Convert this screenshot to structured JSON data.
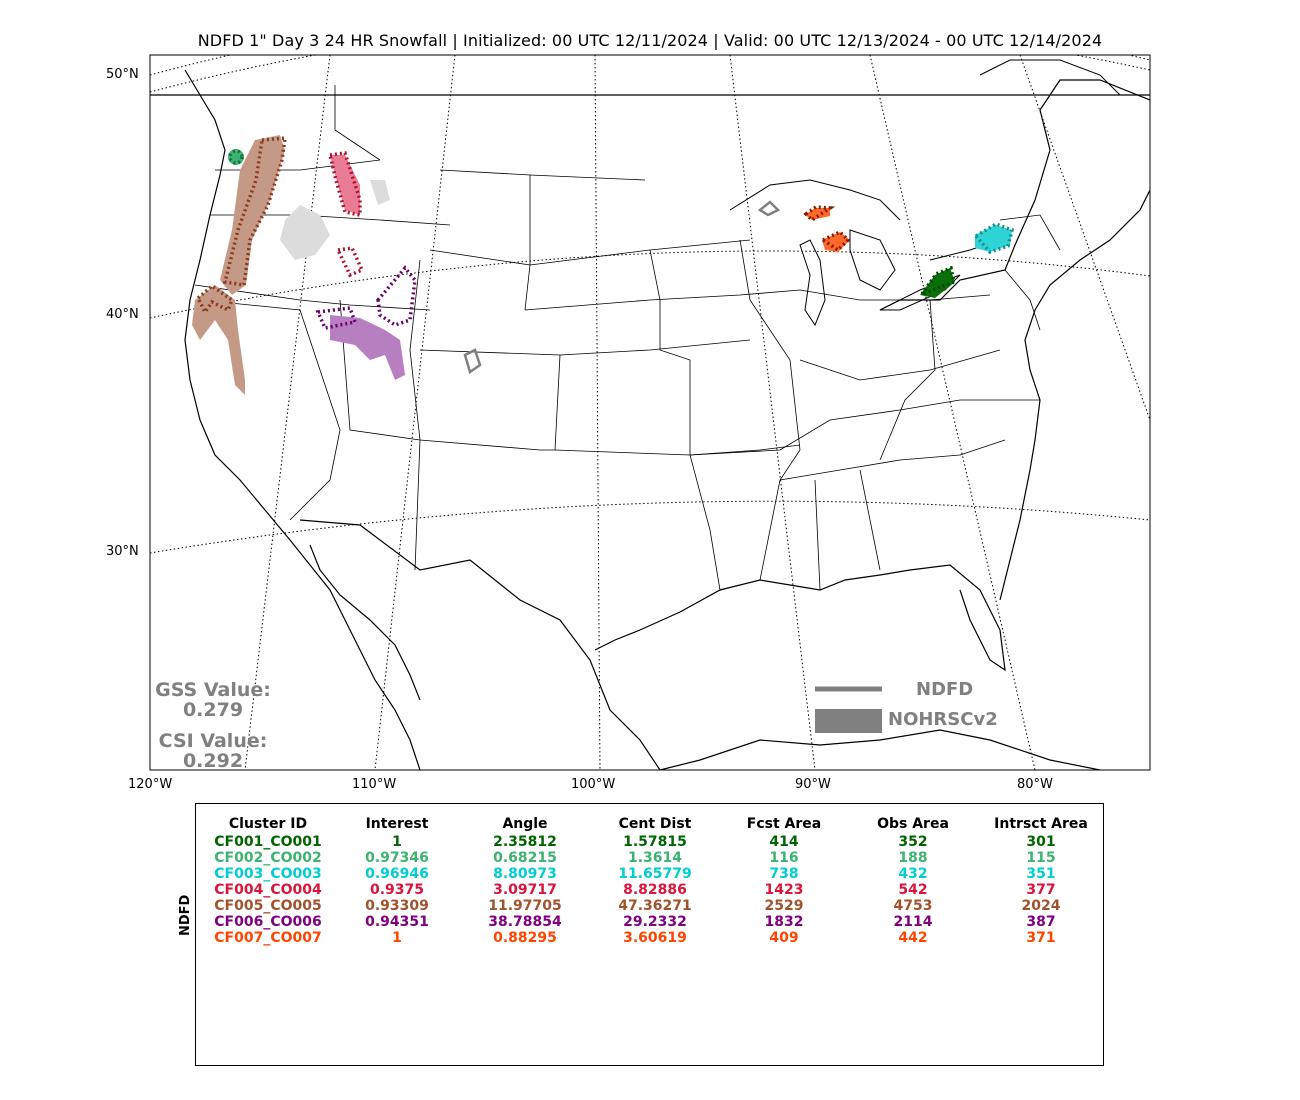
{
  "title": "NDFD 1\" Day 3 24 HR Snowfall | Initialized: 00 UTC 12/11/2024 | Valid: 00 UTC 12/13/2024 - 00 UTC 12/14/2024",
  "lat_labels": [
    "50°N",
    "40°N",
    "30°N"
  ],
  "lon_labels": [
    "120°W",
    "110°W",
    "100°W",
    "90°W",
    "80°W"
  ],
  "stats": {
    "gss_label": "GSS Value:",
    "gss_value": "0.279",
    "csi_label": "CSI Value:",
    "csi_value": "0.292"
  },
  "legend": {
    "line_label": "NDFD",
    "fill_label": "NOHRSCv2",
    "color": "#808080"
  },
  "table": {
    "row_label": "NDFD",
    "headers": [
      "Cluster ID",
      "Interest",
      "Angle",
      "Cent Dist",
      "Fcst Area",
      "Obs Area",
      "Intrsct Area"
    ],
    "rows": [
      {
        "color": "#006400",
        "cells": [
          "CF001_CO001",
          "1",
          "2.35812",
          "1.57815",
          "414",
          "352",
          "301"
        ]
      },
      {
        "color": "#3cb371",
        "cells": [
          "CF002_CO002",
          "0.97346",
          "0.68215",
          "1.3614",
          "116",
          "188",
          "115"
        ]
      },
      {
        "color": "#00ced1",
        "cells": [
          "CF003_CO003",
          "0.96946",
          "8.80973",
          "11.65779",
          "738",
          "432",
          "351"
        ]
      },
      {
        "color": "#dc143c",
        "cells": [
          "CF004_CO004",
          "0.9375",
          "3.09717",
          "8.82886",
          "1423",
          "542",
          "377"
        ]
      },
      {
        "color": "#a0522d",
        "cells": [
          "CF005_CO005",
          "0.93309",
          "11.97705",
          "47.36271",
          "2529",
          "4753",
          "2024"
        ]
      },
      {
        "color": "#800080",
        "cells": [
          "CF006_CO006",
          "0.94351",
          "38.78854",
          "29.2332",
          "1832",
          "2114",
          "387"
        ]
      },
      {
        "color": "#ff4500",
        "cells": [
          "CF007_CO007",
          "1",
          "0.88295",
          "3.60619",
          "409",
          "442",
          "371"
        ]
      }
    ]
  },
  "map_colors": {
    "unmatched": "#808080",
    "unmatched_fill": "#d9d9d9"
  }
}
